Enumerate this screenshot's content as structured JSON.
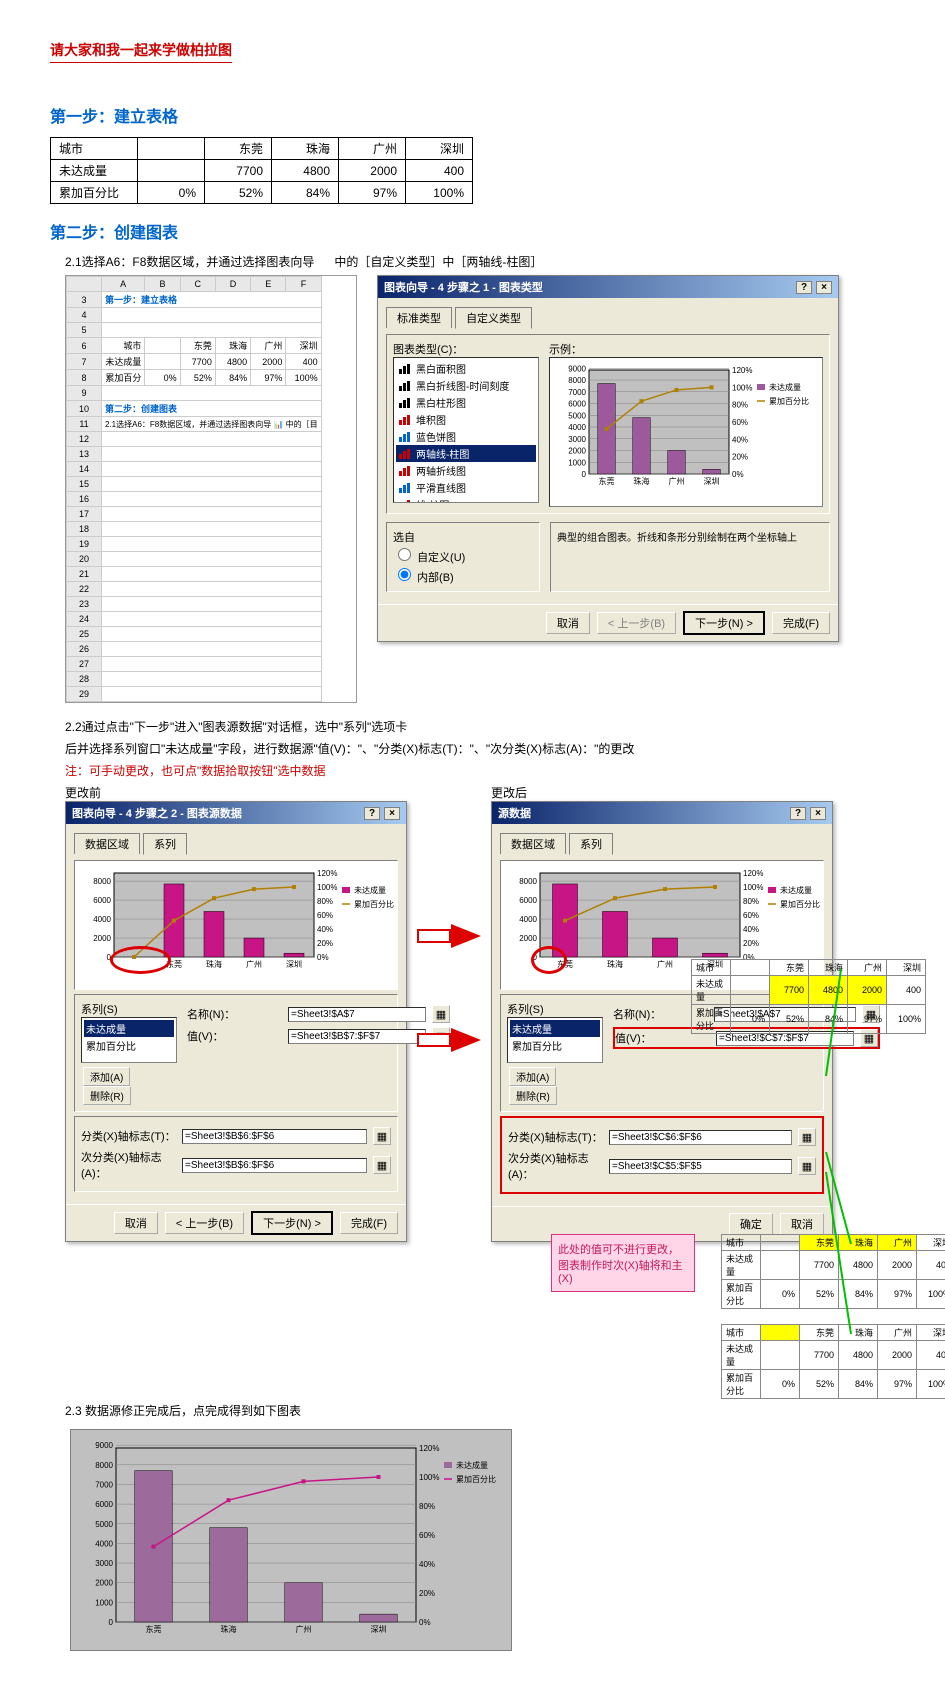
{
  "doc_title": "请大家和我一起来学做柏拉图",
  "step1": {
    "heading": "第一步：建立表格",
    "table": {
      "columns": [
        "城市",
        "",
        "东莞",
        "珠海",
        "广州",
        "深圳"
      ],
      "rows": [
        [
          "未达成量",
          "",
          "7700",
          "4800",
          "2000",
          "400"
        ],
        [
          "累加百分比",
          "0%",
          "52%",
          "84%",
          "97%",
          "100%"
        ]
      ]
    }
  },
  "step2": {
    "heading": "第二步：创建图表",
    "sub21": "2.1选择A6：F8数据区域，并通过选择图表向导",
    "sub21_suffix": "中的［自定义类型］中［两轴线-柱图］",
    "excel_mini": {
      "step1_label": "第一步：建立表格",
      "step2_label": "第二步：创建图表",
      "sub_text": "2.1选择A6：F8数据区域，并通过选择图表向导 📊 中的［目",
      "cols": [
        "A",
        "B",
        "C",
        "D",
        "E",
        "F"
      ],
      "rownums": [
        "3",
        "4",
        "5",
        "6",
        "7",
        "8",
        "9",
        "10",
        "11",
        "12",
        "13",
        "14",
        "15",
        "16",
        "17",
        "18",
        "19",
        "20",
        "21",
        "22",
        "23",
        "24",
        "25",
        "26",
        "27",
        "28",
        "29"
      ],
      "data_rows": [
        [
          "城市",
          "",
          "东莞",
          "珠海",
          "广州",
          "深圳"
        ],
        [
          "未达成量",
          "",
          "7700",
          "4800",
          "2000",
          "400"
        ],
        [
          "累加百分",
          "0%",
          "52%",
          "84%",
          "97%",
          "100%"
        ]
      ]
    },
    "wizard1": {
      "title": "图表向导 - 4 步骤之 1 - 图表类型",
      "tab_std": "标准类型",
      "tab_custom": "自定义类型",
      "typelist_label": "图表类型(C)：",
      "sample_label": "示例：",
      "types": [
        {
          "name": "黑白面积图",
          "color": "#000"
        },
        {
          "name": "黑白折线图-时间刻度",
          "color": "#000"
        },
        {
          "name": "黑白柱形图",
          "color": "#000"
        },
        {
          "name": "堆积图",
          "color": "#c00"
        },
        {
          "name": "蓝色饼图",
          "color": "#0066cc"
        },
        {
          "name": "两轴线-柱图",
          "color": "#c00",
          "sel": true
        },
        {
          "name": "两轴折线图",
          "color": "#c00"
        },
        {
          "name": "平滑直线图",
          "color": "#0066cc"
        },
        {
          "name": "线-柱图",
          "color": "#c00"
        }
      ],
      "option_label": "选自",
      "radio_user": "自定义(U)",
      "radio_builtin": "内部(B)",
      "desc": "典型的组合图表。折线和条形分别绘制在两个坐标轴上",
      "btn_cancel": "取消",
      "btn_prev": "< 上一步(B)",
      "btn_next": "下一步(N) >",
      "btn_finish": "完成(F)",
      "sample_chart": {
        "type": "bar-line",
        "categories": [
          "东莞",
          "珠海",
          "广州",
          "深圳"
        ],
        "bars": [
          7700,
          4800,
          2000,
          400
        ],
        "line_pct": [
          52,
          84,
          97,
          100
        ],
        "y_ticks": [
          "0",
          "1000",
          "2000",
          "3000",
          "4000",
          "5000",
          "6000",
          "7000",
          "8000",
          "9000"
        ],
        "y2_ticks": [
          "0%",
          "20%",
          "40%",
          "60%",
          "80%",
          "100%",
          "120%"
        ],
        "bar_color": "#9c5a9c",
        "line_color": "#b08000",
        "legend": [
          "未达成量",
          "累加百分比"
        ]
      }
    },
    "sub22_lines": [
      "2.2通过点击\"下一步\"进入\"图表源数据\"对话框，选中\"系列\"选项卡",
      "后并选择系列窗口\"未达成量\"字段，进行数据源\"值(V)：\"、\"分类(X)标志(T)：\"、\"次分类(X)标志(A)：\"的更改"
    ],
    "sub22_note": "注：可手动更改，也可点\"数据拾取按钮\"选中数据",
    "before_label": "更改前",
    "after_label": "更改后",
    "wizard2": {
      "title": "图表向导 - 4 步骤之 2 - 图表源数据",
      "title_after": "源数据",
      "tab_range": "数据区域",
      "tab_series": "系列",
      "series_label": "系列(S)",
      "series_items": [
        "未达成量",
        "累加百分比"
      ],
      "name_label": "名称(N)：",
      "value_label": "值(V)：",
      "add_btn": "添加(A)",
      "del_btn": "删除(R)",
      "xlabel": "分类(X)轴标志(T)：",
      "x2label": "次分类(X)轴标志(A)：",
      "before_name": "=Sheet3!$A$7",
      "before_value": "=Sheet3!$B$7:$F$7",
      "before_x": "=Sheet3!$B$6:$F$6",
      "before_x2": "=Sheet3!$B$6:$F$6",
      "after_value": "=Sheet3!$C$7:$F$7",
      "after_x": "=Sheet3!$C$6:$F$6",
      "after_x2": "=Sheet3!$C$5:$F$5",
      "btn_ok": "确定",
      "btn_cancel": "取消",
      "btn_prev": "< 上一步(B)",
      "btn_next": "下一步(N) >",
      "btn_finish": "完成(F)",
      "chart": {
        "y_ticks": [
          "0",
          "2000",
          "4000",
          "6000",
          "8000"
        ],
        "y2_ticks": [
          "0%",
          "20%",
          "40%",
          "60%",
          "80%",
          "100%",
          "120%"
        ],
        "categories": [
          "东莞",
          "珠海",
          "广州",
          "深圳"
        ],
        "bars": [
          7700,
          4800,
          2000,
          400
        ],
        "line_pct": [
          52,
          84,
          97,
          100
        ],
        "bar_color": "#c71585",
        "line_color": "#b08000"
      }
    },
    "callout_text": "此处的值可不进行更改，图表制作时次(X)轴将和主(X)",
    "mini_tables": {
      "cols": [
        "城市",
        "",
        "东莞",
        "珠海",
        "广州",
        "深圳"
      ],
      "r1": [
        "未达成量",
        "",
        "7700",
        "4800",
        "2000",
        "400"
      ],
      "r2": [
        "累加百分比",
        "0%",
        "52%",
        "84%",
        "97%",
        "100%"
      ]
    },
    "sub23": "2.3 数据源修正完成后，点完成得到如下图表",
    "final_chart": {
      "type": "bar-line",
      "categories": [
        "东莞",
        "珠海",
        "广州",
        "深圳"
      ],
      "bars": [
        7700,
        4800,
        2000,
        400
      ],
      "line_pct": [
        52,
        84,
        97,
        100
      ],
      "y_ticks": [
        "0",
        "1000",
        "2000",
        "3000",
        "4000",
        "5000",
        "6000",
        "7000",
        "8000",
        "9000"
      ],
      "y2_ticks": [
        "0%",
        "20%",
        "40%",
        "60%",
        "80%",
        "100%",
        "120%"
      ],
      "bar_color": "#9c6b9c",
      "line_color": "#c71585",
      "plot_bg": "#c0c0c0",
      "grid_color": "#808080",
      "legend": [
        "未达成量",
        "累加百分比"
      ]
    }
  }
}
